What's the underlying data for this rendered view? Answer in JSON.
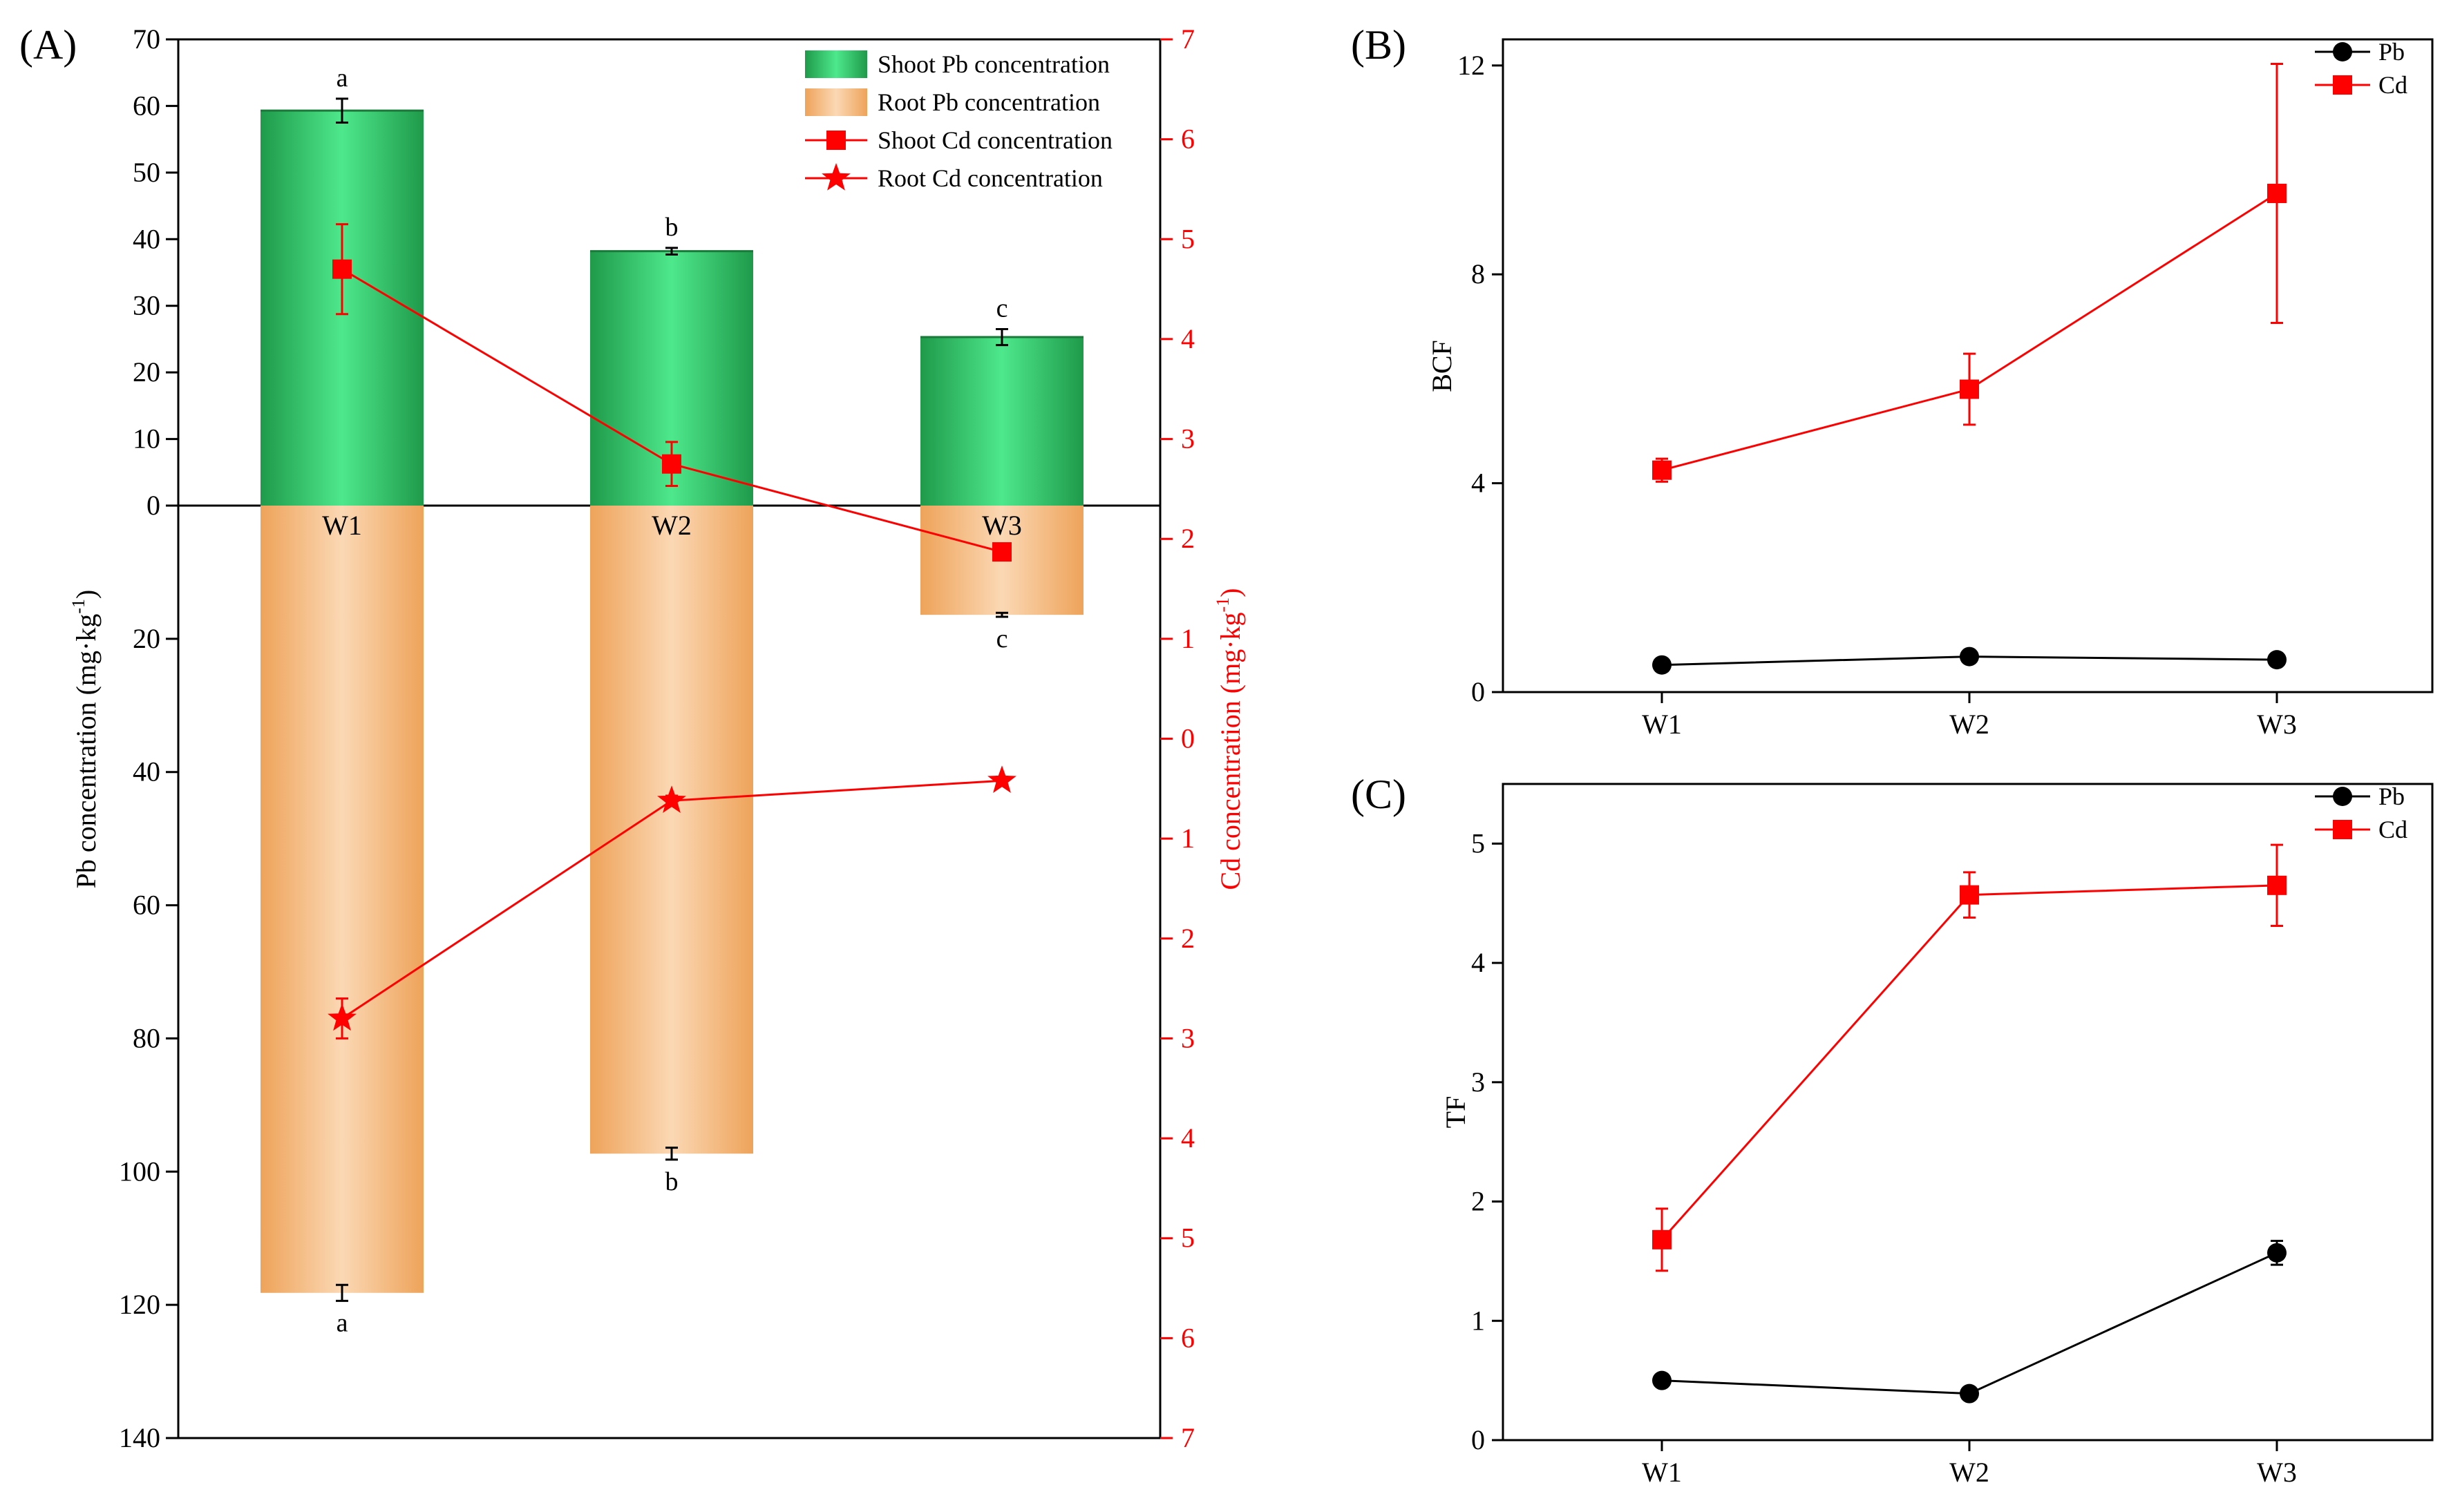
{
  "colors": {
    "shoot_pb": "#2fbf5f",
    "root_pb": "#f0a860",
    "cd": "#ff0000",
    "pb": "#000000",
    "cd_axis": "#ff0000"
  },
  "chart_data": [
    {
      "panel": "(A)",
      "type": "bar",
      "categories": [
        "W1",
        "W2",
        "W3"
      ],
      "ylabel": "Pb concentration (mg·kg⁻¹)",
      "ylabel_parts": {
        "main": "Pb concentration (mg·kg",
        "sup": "-1",
        "tail": ")"
      },
      "y2label": "Cd concentration (mg·kg⁻¹)",
      "y2label_parts": {
        "main": "Cd concentration (mg·kg",
        "sup": "-1",
        "tail": ")"
      },
      "ylim": [
        -140,
        70
      ],
      "y2lim": [
        -7,
        7
      ],
      "yticks": [
        70,
        60,
        50,
        40,
        30,
        20,
        10,
        0,
        -20,
        -40,
        -60,
        -80,
        -100,
        -120,
        -140
      ],
      "ytick_labels": [
        "70",
        "60",
        "50",
        "40",
        "30",
        "20",
        "10",
        "0",
        "20",
        "40",
        "60",
        "80",
        "100",
        "120",
        "140"
      ],
      "y2ticks": [
        7,
        6,
        5,
        4,
        3,
        2,
        1,
        0,
        -1,
        -2,
        -3,
        -4,
        -5,
        -6,
        -7
      ],
      "y2tick_labels": [
        "7",
        "6",
        "5",
        "4",
        "3",
        "2",
        "1",
        "0",
        "1",
        "2",
        "3",
        "4",
        "5",
        "6",
        "7"
      ],
      "legend": [
        "Shoot Pb concentration",
        "Root Pb concentration",
        "Shoot Cd concentration",
        "Root Cd concentration"
      ],
      "series": [
        {
          "name": "Shoot Pb concentration",
          "kind": "bar",
          "axis": "left",
          "values": [
            59.3,
            38.2,
            25.3
          ],
          "errors": [
            1.8,
            0.5,
            1.2
          ],
          "letters": [
            "a",
            "b",
            "c"
          ]
        },
        {
          "name": "Root Pb concentration",
          "kind": "bar",
          "axis": "left",
          "values": [
            -118.2,
            -97.3,
            -16.4
          ],
          "errors": [
            1.2,
            0.9,
            0.3
          ],
          "letters": [
            "a",
            "b",
            "c"
          ]
        },
        {
          "name": "Shoot Cd concentration",
          "kind": "line",
          "marker": "square",
          "axis": "right",
          "values": [
            4.7,
            2.75,
            1.87
          ],
          "errors": [
            0.45,
            0.22,
            0.06
          ]
        },
        {
          "name": "Root Cd concentration",
          "kind": "line",
          "marker": "star",
          "axis": "right",
          "values": [
            -2.8,
            -0.62,
            -0.42
          ],
          "errors": [
            0.2,
            0.05,
            0.04
          ]
        }
      ]
    },
    {
      "panel": "(B)",
      "type": "line",
      "categories": [
        "W1",
        "W2",
        "W3"
      ],
      "ylabel": "BCF",
      "ylim": [
        0,
        12.5
      ],
      "yticks": [
        0,
        4,
        8,
        12
      ],
      "ytick_labels": [
        "0",
        "4",
        "8",
        "12"
      ],
      "legend": [
        "Pb",
        "Cd"
      ],
      "series": [
        {
          "name": "Pb",
          "marker": "circle",
          "values": [
            0.52,
            0.68,
            0.62
          ],
          "errors": [
            0.03,
            0.03,
            0.03
          ]
        },
        {
          "name": "Cd",
          "marker": "square",
          "values": [
            4.25,
            5.8,
            9.55
          ],
          "errors": [
            0.22,
            0.68,
            2.48
          ]
        }
      ]
    },
    {
      "panel": "(C)",
      "type": "line",
      "categories": [
        "W1",
        "W2",
        "W3"
      ],
      "ylabel": "TF",
      "ylim": [
        0,
        5.5
      ],
      "yticks": [
        0,
        1,
        2,
        3,
        4,
        5
      ],
      "ytick_labels": [
        "0",
        "1",
        "2",
        "3",
        "4",
        "5"
      ],
      "legend": [
        "Pb",
        "Cd"
      ],
      "series": [
        {
          "name": "Pb",
          "marker": "circle",
          "values": [
            0.5,
            0.39,
            1.57
          ],
          "errors": [
            0.02,
            0.02,
            0.1
          ]
        },
        {
          "name": "Cd",
          "marker": "square",
          "values": [
            1.68,
            4.57,
            4.65
          ],
          "errors": [
            0.26,
            0.19,
            0.34
          ]
        }
      ]
    }
  ]
}
